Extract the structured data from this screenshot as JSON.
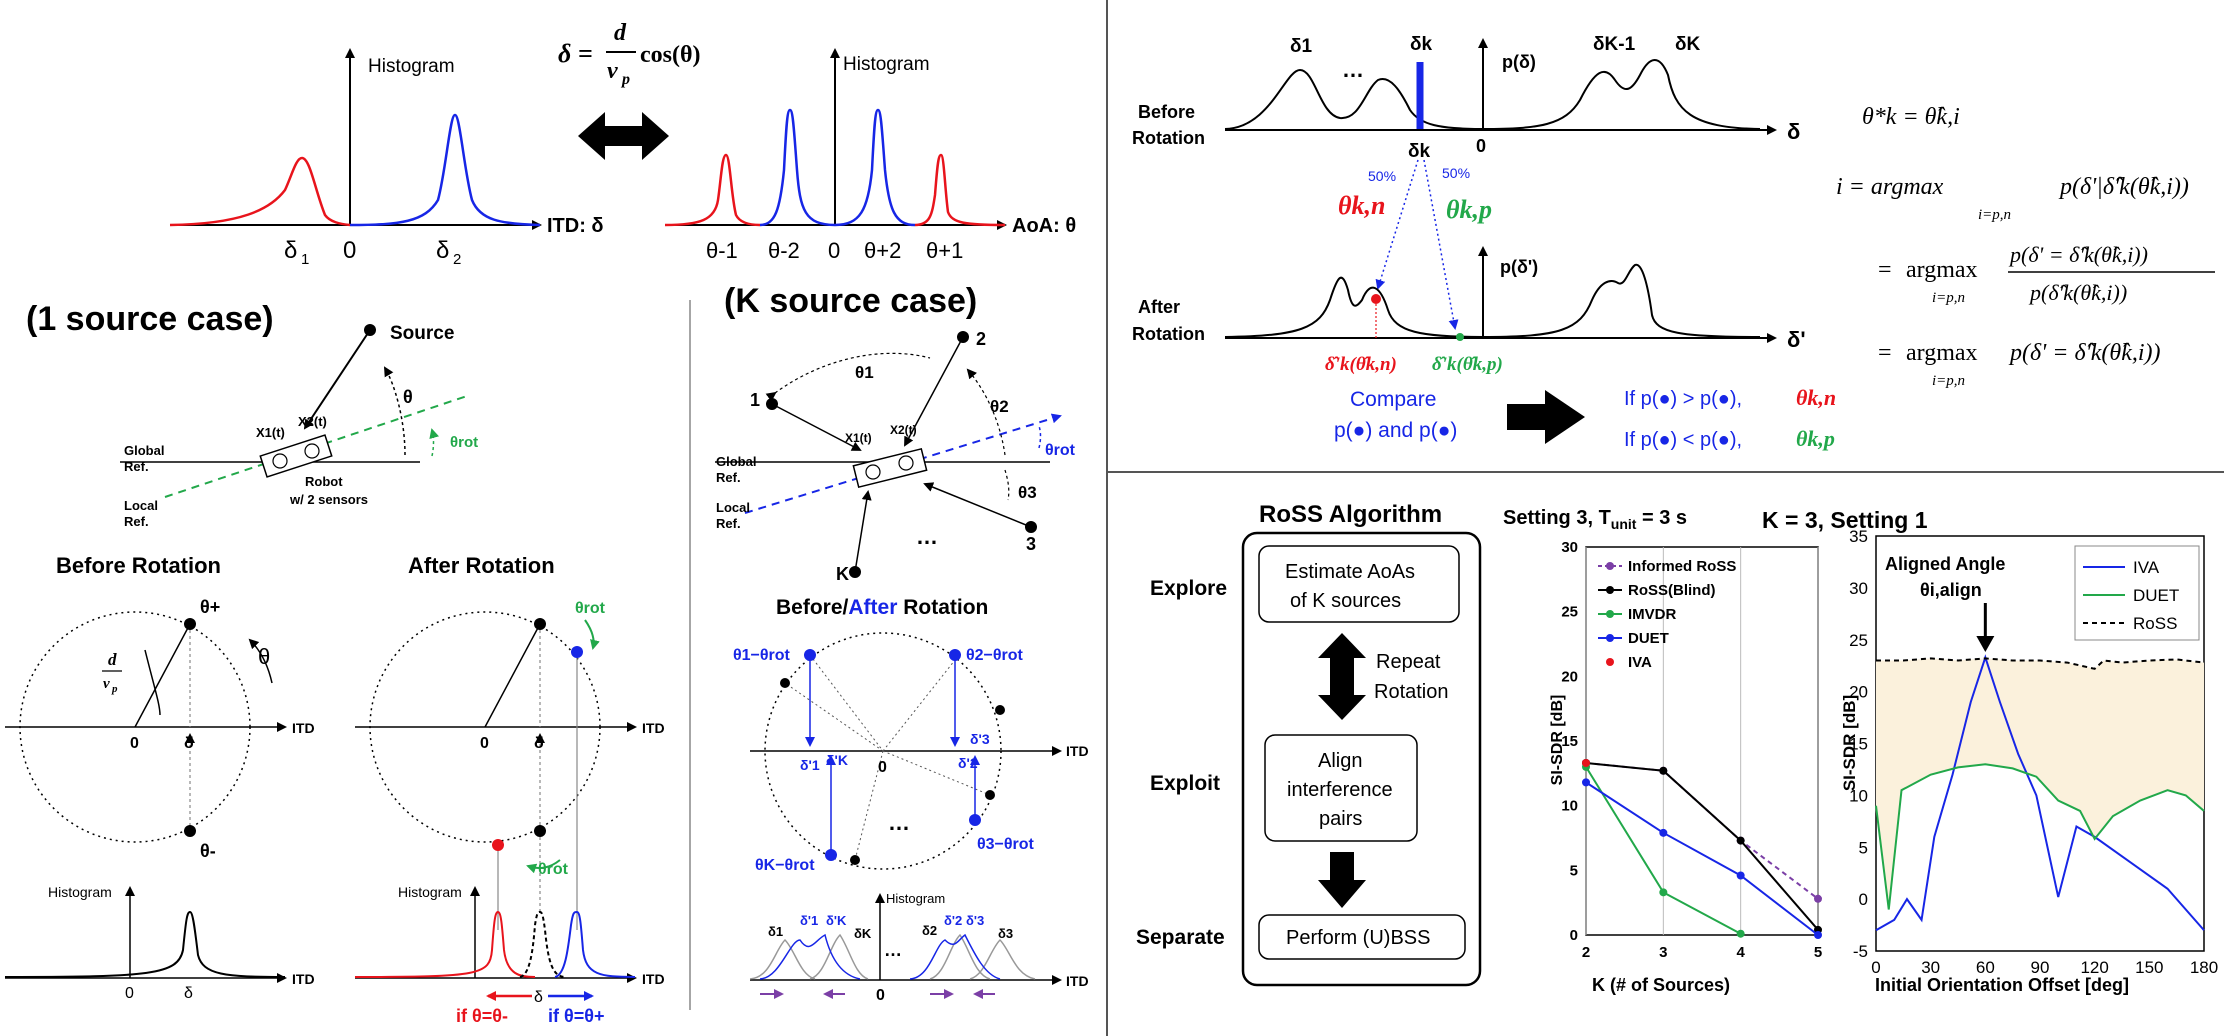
{
  "top_left": {
    "histogram_label": "Histogram",
    "formula": {
      "lhs": "δ =",
      "num": "d",
      "den": "v",
      "den_sub": "p",
      "rhs": "cos(θ)"
    },
    "itd_axis_label": "ITD: δ",
    "aoa_axis_label": "AoA: θ",
    "itd_ticks": [
      "δ",
      "1",
      "0",
      "δ",
      "2"
    ],
    "aoa_ticks": [
      "θ-1",
      "θ-2",
      "0",
      "θ+2",
      "θ+1"
    ]
  },
  "one_source": {
    "title": "(1 source case)",
    "source_label": "Source",
    "theta": "θ",
    "theta_rot": "θrot",
    "global_ref": [
      "Global",
      "Ref."
    ],
    "local_ref": [
      "Local",
      "Ref."
    ],
    "robot": [
      "Robot",
      "w/ 2 sensors"
    ],
    "x1": "X1(t)",
    "x2": "X2(t)",
    "before_title": "Before Rotation",
    "after_title": "After Rotation",
    "itd": "ITD",
    "zero": "0",
    "delta": "δ",
    "histogram": "Histogram",
    "theta_plus": "θ+",
    "theta_minus": "θ-",
    "if_minus": "if θ=θ-",
    "if_plus": "if θ=θ+"
  },
  "k_source": {
    "title": "(K source case)",
    "n1": "1",
    "n2": "2",
    "n3": "3",
    "nk": "K",
    "theta1": "θ1",
    "theta2": "θ2",
    "theta3": "θ3",
    "theta_rot": "θrot",
    "global_ref": [
      "Global",
      "Ref."
    ],
    "local_ref": [
      "Local",
      "Ref."
    ],
    "dots": "…",
    "before": "Before/",
    "after": "After",
    "rotation": " Rotation",
    "label_t1": "θ1−θrot",
    "label_t2": "θ2−θrot",
    "label_t3": "θ3−θrot",
    "label_tk": "θK−θrot",
    "itd": "ITD",
    "zero": "0",
    "histogram": "Histogram"
  },
  "top_right": {
    "before": [
      "Before",
      "Rotation"
    ],
    "after": [
      "After",
      "Rotation"
    ],
    "p_delta": "p(δ)",
    "p_delta_prime": "p(δ')",
    "delta_axis": "δ",
    "delta_prime_axis": "δ'",
    "zero": "0",
    "pct": "50%",
    "theta_kn": "θk,n",
    "theta_kp": "θk,p",
    "compare": [
      "Compare",
      "p(●) and p(●)"
    ],
    "if_gt": "If p(●) > p(●),",
    "if_lt": "If p(●) < p(●),",
    "eq1_lhs": "θ*k = θ̂k,i",
    "eq_i": "i = argmax",
    "eq_sub": "i=p,n",
    "eq2": "p(δ'|δ̂'k(θ̂k,i))",
    "eq3_num": "p(δ' = δ̂'k(θ̂k,i))",
    "eq3_den": "p(δ̂'k(θ̂k,i))",
    "eq4": "p(δ' = δ̂'k(θ̂k,i))"
  },
  "algorithm": {
    "title": "RoSS Algorithm",
    "explore": "Explore",
    "exploit": "Exploit",
    "separate": "Separate",
    "box1": [
      "Estimate AoAs",
      "of K sources"
    ],
    "repeat": [
      "Repeat",
      "Rotation"
    ],
    "box2": [
      "Align",
      "interference",
      "pairs"
    ],
    "box3": "Perform (U)BSS"
  },
  "colors": {
    "red": "#e8141c",
    "blue": "#1726e6",
    "green": "#22a84a",
    "purple": "#7b3fa6",
    "fill": "#fbf1dc"
  },
  "chart_data": [
    {
      "type": "line",
      "title": "Setting 3, Tunit = 3 s",
      "xlabel": "K (# of Sources)",
      "ylabel": "SI-SDR [dB]",
      "x": [
        2,
        3,
        4,
        5
      ],
      "xlim": [
        2,
        5
      ],
      "ylim": [
        0,
        30
      ],
      "yticks": [
        0,
        5,
        10,
        15,
        20,
        25,
        30
      ],
      "legend": "top-left",
      "series": [
        {
          "name": "Informed RoSS",
          "color": "#7b3fa6",
          "dashed": true,
          "values": [
            13.3,
            12.7,
            7.3,
            2.8
          ]
        },
        {
          "name": "RoSS(Blind)",
          "color": "#000000",
          "values": [
            13.3,
            12.7,
            7.3,
            0.4
          ]
        },
        {
          "name": "IMVDR",
          "color": "#22a84a",
          "values": [
            13.0,
            3.3,
            0.1,
            null
          ]
        },
        {
          "name": "DUET",
          "color": "#1726e6",
          "values": [
            11.8,
            7.9,
            4.6,
            0
          ]
        },
        {
          "name": "IVA",
          "color": "#e8141c",
          "values": [
            13.3,
            null,
            null,
            null
          ]
        }
      ]
    },
    {
      "type": "line",
      "title": "K = 3, Setting 1",
      "xlabel": "Initial Orientation Offset [deg]",
      "ylabel": "SI-SDR [dB]",
      "xlim": [
        0,
        180
      ],
      "ylim": [
        -5,
        35
      ],
      "xticks": [
        0,
        30,
        60,
        90,
        120,
        150,
        180
      ],
      "yticks": [
        -5,
        0,
        5,
        10,
        15,
        20,
        25,
        30,
        35
      ],
      "annotation": [
        "Aligned Angle",
        "θi,align"
      ],
      "legend": "top-right",
      "series": [
        {
          "name": "IVA",
          "color": "#1726e6",
          "x": [
            0,
            10,
            17,
            25,
            32,
            42,
            52,
            60,
            68,
            78,
            88,
            100,
            110,
            120,
            140,
            160,
            180
          ],
          "values": [
            -3,
            -2,
            0,
            -2,
            6,
            12,
            19,
            23.3,
            19,
            14,
            10,
            0.2,
            7,
            6,
            3.5,
            1,
            -3
          ]
        },
        {
          "name": "DUET",
          "color": "#22a84a",
          "x": [
            0,
            7,
            14,
            30,
            45,
            60,
            75,
            88,
            100,
            112,
            120,
            130,
            145,
            160,
            170,
            180
          ],
          "values": [
            9,
            -1,
            10.5,
            12,
            12.7,
            13,
            12.6,
            11.8,
            9.5,
            8.5,
            5.8,
            8,
            9.5,
            10.5,
            10,
            8.5
          ]
        },
        {
          "name": "RoSS",
          "color": "#000000",
          "dashed": true,
          "x": [
            0,
            15,
            30,
            45,
            60,
            75,
            90,
            105,
            120,
            125,
            135,
            150,
            165,
            180
          ],
          "values": [
            23,
            23,
            23.2,
            23,
            23.2,
            23,
            23,
            22.8,
            22.2,
            23,
            22.8,
            23,
            23.1,
            22.8
          ]
        }
      ]
    }
  ]
}
